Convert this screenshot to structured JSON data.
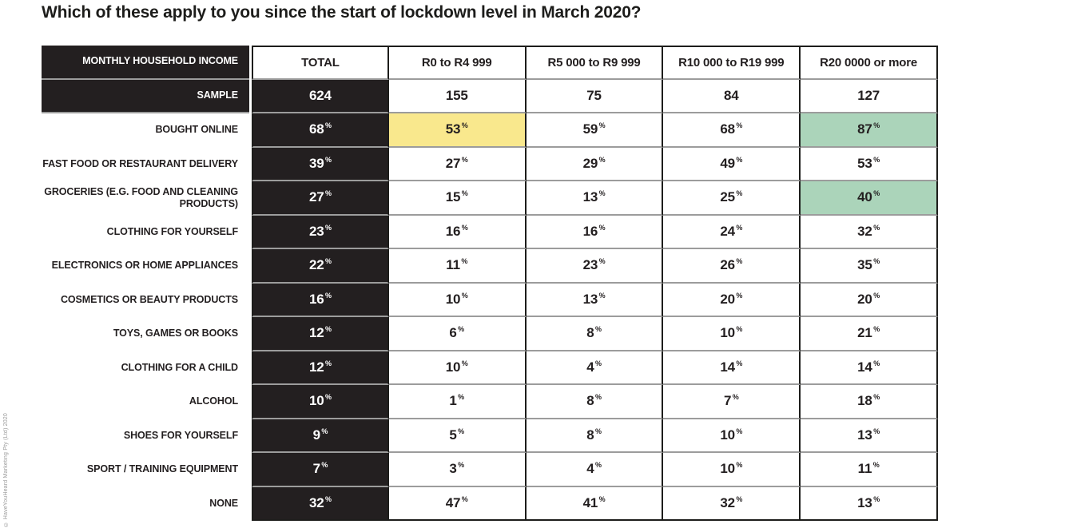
{
  "title": "Which of these apply to you since the start of lockdown level in March 2020?",
  "copyright": "© HaveYouHeard Marketing Pty (Ltd) 2020",
  "percent_sign": "%",
  "colors": {
    "cell_black": "#231F20",
    "row_separator_gray": "#9C9C9C",
    "highlight_yellow": "#F9E88D",
    "highlight_green": "#ABD4BA"
  },
  "chart_data": {
    "type": "table",
    "title": "Which of these apply to you since the start of lockdown level in March 2020?",
    "unit": "%",
    "columns": [
      "MONTHLY HOUSEHOLD INCOME",
      "TOTAL",
      "R0 to R4 999",
      "R5 000 to R9 999",
      "R10 000 to R19 999",
      "R20 0000 or more"
    ],
    "sample": {
      "label": "SAMPLE",
      "values": [
        624,
        155,
        75,
        84,
        127
      ]
    },
    "rows": [
      {
        "label": "BOUGHT ONLINE",
        "values": [
          68,
          53,
          59,
          68,
          87
        ],
        "highlights": [
          null,
          "yellow",
          null,
          null,
          "green"
        ]
      },
      {
        "label": "FAST FOOD OR RESTAURANT DELIVERY",
        "values": [
          39,
          27,
          29,
          49,
          53
        ],
        "highlights": [
          null,
          null,
          null,
          null,
          null
        ]
      },
      {
        "label": "GROCERIES (E.G. FOOD AND CLEANING PRODUCTS)",
        "values": [
          27,
          15,
          13,
          25,
          40
        ],
        "highlights": [
          null,
          null,
          null,
          null,
          "green"
        ]
      },
      {
        "label": "CLOTHING FOR YOURSELF",
        "values": [
          23,
          16,
          16,
          24,
          32
        ],
        "highlights": [
          null,
          null,
          null,
          null,
          null
        ]
      },
      {
        "label": "ELECTRONICS OR HOME APPLIANCES",
        "values": [
          22,
          11,
          23,
          26,
          35
        ],
        "highlights": [
          null,
          null,
          null,
          null,
          null
        ]
      },
      {
        "label": "COSMETICS OR BEAUTY PRODUCTS",
        "values": [
          16,
          10,
          13,
          20,
          20
        ],
        "highlights": [
          null,
          null,
          null,
          null,
          null
        ]
      },
      {
        "label": "TOYS, GAMES OR BOOKS",
        "values": [
          12,
          6,
          8,
          10,
          21
        ],
        "highlights": [
          null,
          null,
          null,
          null,
          null
        ]
      },
      {
        "label": "CLOTHING FOR A CHILD",
        "values": [
          12,
          10,
          4,
          14,
          14
        ],
        "highlights": [
          null,
          null,
          null,
          null,
          null
        ]
      },
      {
        "label": "ALCOHOL",
        "values": [
          10,
          1,
          8,
          7,
          18
        ],
        "highlights": [
          null,
          null,
          null,
          null,
          null
        ]
      },
      {
        "label": "SHOES FOR YOURSELF",
        "values": [
          9,
          5,
          8,
          10,
          13
        ],
        "highlights": [
          null,
          null,
          null,
          null,
          null
        ]
      },
      {
        "label": "SPORT / TRAINING EQUIPMENT",
        "values": [
          7,
          3,
          4,
          10,
          11
        ],
        "highlights": [
          null,
          null,
          null,
          null,
          null
        ]
      },
      {
        "label": "NONE",
        "values": [
          32,
          47,
          41,
          32,
          13
        ],
        "highlights": [
          null,
          null,
          null,
          null,
          null
        ]
      }
    ]
  }
}
